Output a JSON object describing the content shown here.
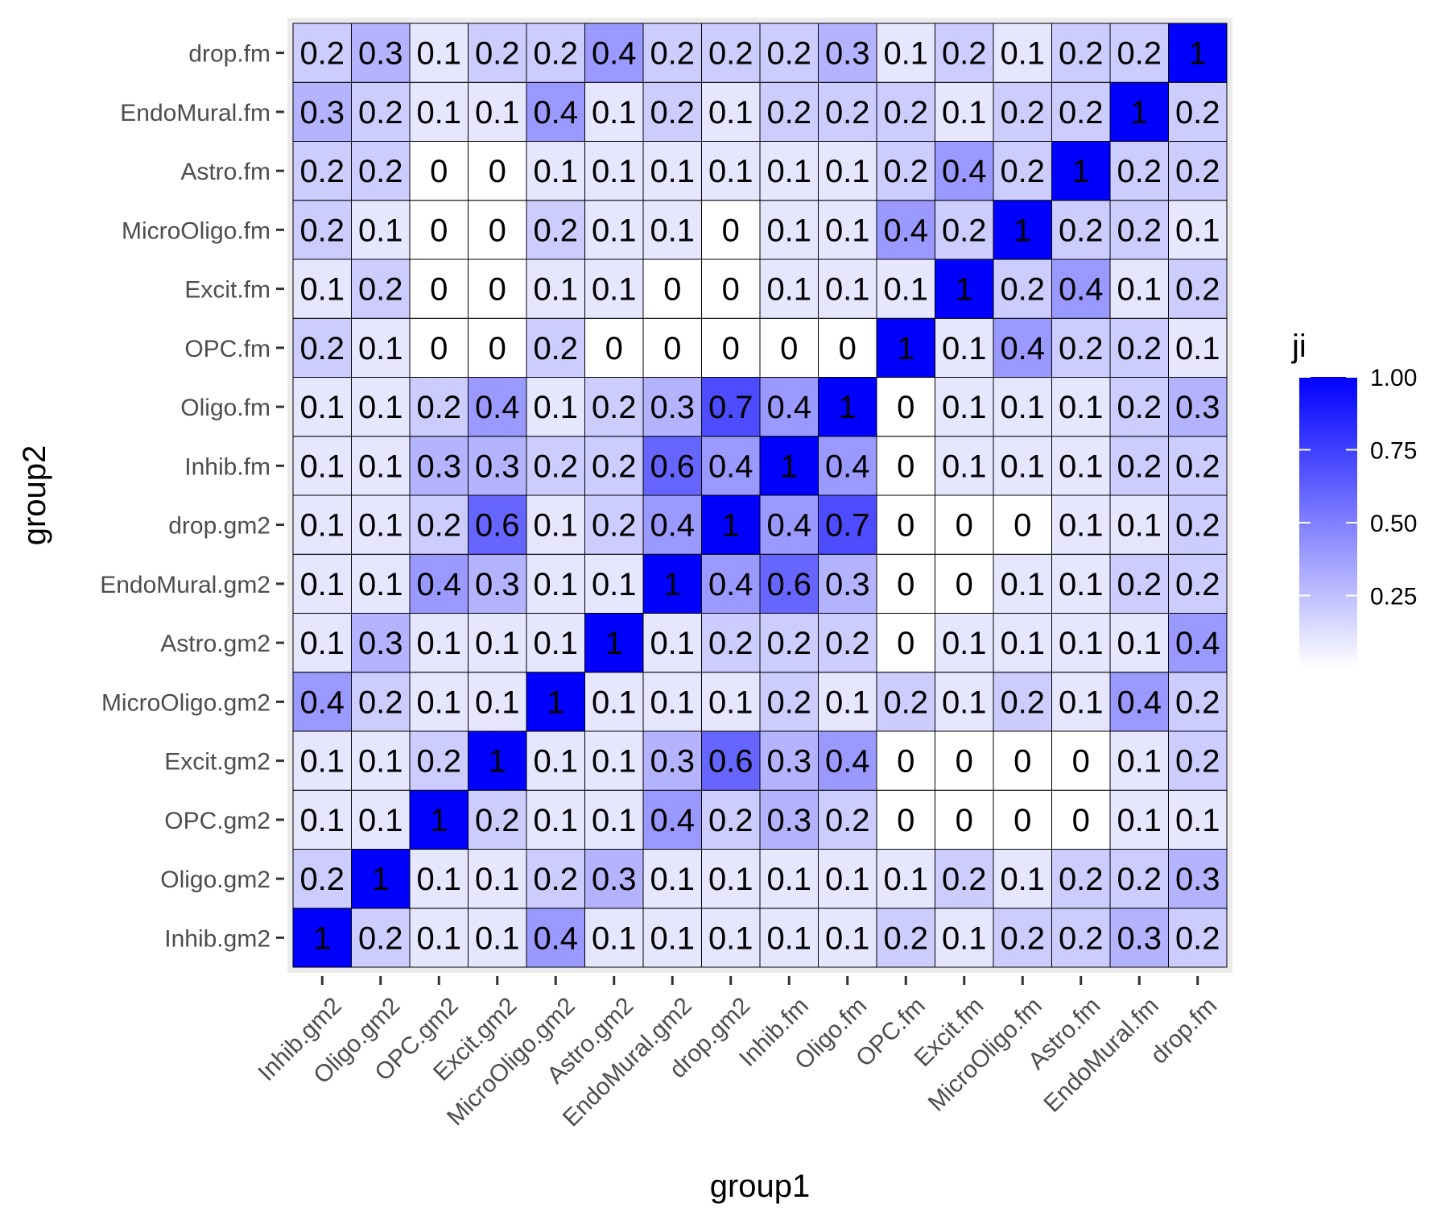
{
  "chart_data": {
    "type": "heatmap",
    "xlabel": "group1",
    "ylabel": "group2",
    "x_categories": [
      "Inhib.gm2",
      "Oligo.gm2",
      "OPC.gm2",
      "Excit.gm2",
      "MicroOligo.gm2",
      "Astro.gm2",
      "EndoMural.gm2",
      "drop.gm2",
      "Inhib.fm",
      "Oligo.fm",
      "OPC.fm",
      "Excit.fm",
      "MicroOligo.fm",
      "Astro.fm",
      "EndoMural.fm",
      "drop.fm"
    ],
    "y_categories": [
      "Inhib.gm2",
      "Oligo.gm2",
      "OPC.gm2",
      "Excit.gm2",
      "MicroOligo.gm2",
      "Astro.gm2",
      "EndoMural.gm2",
      "drop.gm2",
      "Inhib.fm",
      "Oligo.fm",
      "OPC.fm",
      "Excit.fm",
      "MicroOligo.fm",
      "Astro.fm",
      "EndoMural.fm",
      "drop.fm"
    ],
    "values": [
      [
        1,
        0.2,
        0.1,
        0.1,
        0.4,
        0.1,
        0.1,
        0.1,
        0.1,
        0.1,
        0.2,
        0.1,
        0.2,
        0.2,
        0.3,
        0.2
      ],
      [
        0.2,
        1,
        0.1,
        0.1,
        0.2,
        0.3,
        0.1,
        0.1,
        0.1,
        0.1,
        0.1,
        0.2,
        0.1,
        0.2,
        0.2,
        0.3
      ],
      [
        0.1,
        0.1,
        1,
        0.2,
        0.1,
        0.1,
        0.4,
        0.2,
        0.3,
        0.2,
        0,
        0,
        0,
        0,
        0.1,
        0.1
      ],
      [
        0.1,
        0.1,
        0.2,
        1,
        0.1,
        0.1,
        0.3,
        0.6,
        0.3,
        0.4,
        0,
        0,
        0,
        0,
        0.1,
        0.2
      ],
      [
        0.4,
        0.2,
        0.1,
        0.1,
        1,
        0.1,
        0.1,
        0.1,
        0.2,
        0.1,
        0.2,
        0.1,
        0.2,
        0.1,
        0.4,
        0.2
      ],
      [
        0.1,
        0.3,
        0.1,
        0.1,
        0.1,
        1,
        0.1,
        0.2,
        0.2,
        0.2,
        0,
        0.1,
        0.1,
        0.1,
        0.1,
        0.4
      ],
      [
        0.1,
        0.1,
        0.4,
        0.3,
        0.1,
        0.1,
        1,
        0.4,
        0.6,
        0.3,
        0,
        0,
        0.1,
        0.1,
        0.2,
        0.2
      ],
      [
        0.1,
        0.1,
        0.2,
        0.6,
        0.1,
        0.2,
        0.4,
        1,
        0.4,
        0.7,
        0,
        0,
        0,
        0.1,
        0.1,
        0.2
      ],
      [
        0.1,
        0.1,
        0.3,
        0.3,
        0.2,
        0.2,
        0.6,
        0.4,
        1,
        0.4,
        0,
        0.1,
        0.1,
        0.1,
        0.2,
        0.2
      ],
      [
        0.1,
        0.1,
        0.2,
        0.4,
        0.1,
        0.2,
        0.3,
        0.7,
        0.4,
        1,
        0,
        0.1,
        0.1,
        0.1,
        0.2,
        0.3
      ],
      [
        0.2,
        0.1,
        0,
        0,
        0.2,
        0,
        0,
        0,
        0,
        0,
        1,
        0.1,
        0.4,
        0.2,
        0.2,
        0.1
      ],
      [
        0.1,
        0.2,
        0,
        0,
        0.1,
        0.1,
        0,
        0,
        0.1,
        0.1,
        0.1,
        1,
        0.2,
        0.4,
        0.1,
        0.2
      ],
      [
        0.2,
        0.1,
        0,
        0,
        0.2,
        0.1,
        0.1,
        0,
        0.1,
        0.1,
        0.4,
        0.2,
        1,
        0.2,
        0.2,
        0.1
      ],
      [
        0.2,
        0.2,
        0,
        0,
        0.1,
        0.1,
        0.1,
        0.1,
        0.1,
        0.1,
        0.2,
        0.4,
        0.2,
        1,
        0.2,
        0.2
      ],
      [
        0.3,
        0.2,
        0.1,
        0.1,
        0.4,
        0.1,
        0.2,
        0.1,
        0.2,
        0.2,
        0.2,
        0.1,
        0.2,
        0.2,
        1,
        0.2
      ],
      [
        0.2,
        0.3,
        0.1,
        0.2,
        0.2,
        0.4,
        0.2,
        0.2,
        0.2,
        0.3,
        0.1,
        0.2,
        0.1,
        0.2,
        0.2,
        1
      ]
    ],
    "legend": {
      "title": "ji",
      "ticks": [
        "1.00",
        "0.75",
        "0.50",
        "0.25"
      ],
      "tick_values": [
        1.0,
        0.75,
        0.5,
        0.25
      ],
      "range": [
        0,
        1
      ],
      "placement": "right"
    },
    "colors": {
      "low": "#ffffff",
      "high": "#0000ff",
      "panel_background": "#ebebeb",
      "cell_border": "#000000"
    }
  }
}
